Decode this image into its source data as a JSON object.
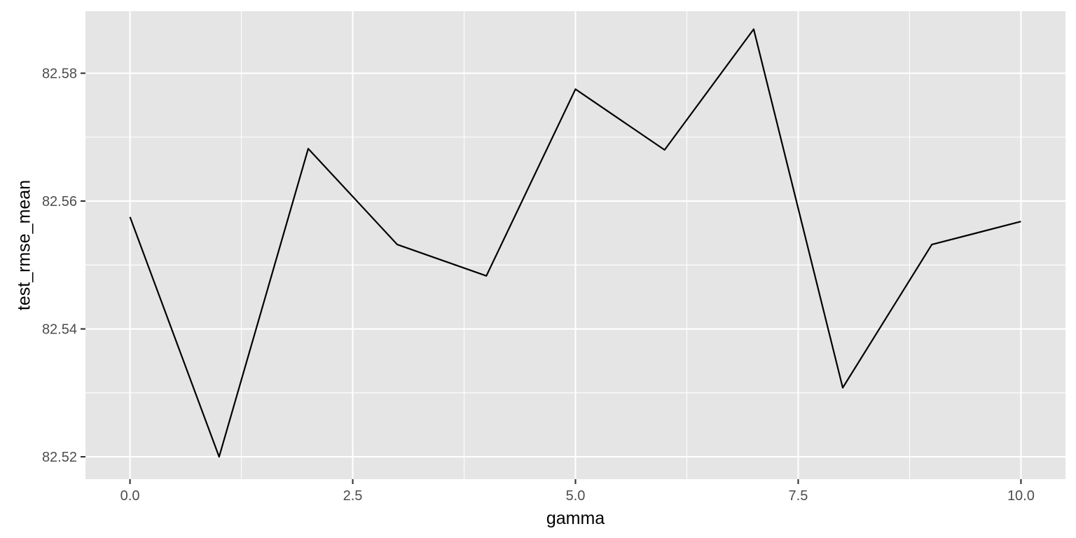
{
  "chart_data": {
    "type": "line",
    "xlabel": "gamma",
    "ylabel": "test_rmse_mean",
    "xlim": [
      -0.5,
      10.5
    ],
    "ylim": [
      82.5165,
      82.5897
    ],
    "x_major_ticks": [
      0.0,
      2.5,
      5.0,
      7.5,
      10.0
    ],
    "x_minor_ticks": [
      1.25,
      3.75,
      6.25,
      8.75
    ],
    "y_major_ticks": [
      82.52,
      82.54,
      82.56,
      82.58
    ],
    "y_minor_ticks": [
      82.53,
      82.55,
      82.57
    ],
    "x_tick_labels": [
      "0.0",
      "2.5",
      "5.0",
      "7.5",
      "10.0"
    ],
    "y_tick_labels": [
      "82.52",
      "82.54",
      "82.56",
      "82.58"
    ],
    "grid": true,
    "legend": "none",
    "colors": {
      "panel": "#e5e5e5",
      "grid": "#ffffff",
      "line": "#000000",
      "tick_text": "#4d4d4d"
    },
    "series": [
      {
        "x": [
          0,
          1,
          2,
          3,
          4,
          5,
          6,
          7,
          8,
          9,
          10
        ],
        "values": [
          82.5575,
          82.52,
          82.5682,
          82.5532,
          82.5483,
          82.5775,
          82.568,
          82.5869,
          82.5308,
          82.5532,
          82.5568
        ]
      }
    ]
  }
}
